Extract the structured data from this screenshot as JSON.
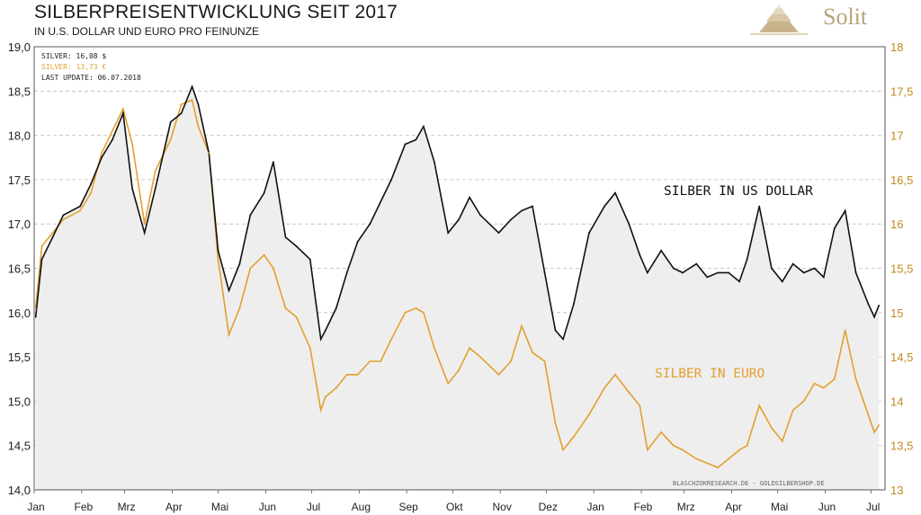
{
  "header": {
    "title": "SILBERPREISENTWICKLUNG SEIT 2017",
    "subtitle": "IN U.S. DOLLAR UND EURO PRO FEINUNZE",
    "brand": "Solit"
  },
  "info_box": {
    "silver_usd": "SILVER: 16,08 $",
    "silver_eur": "SILVER: 13,73 €",
    "last_update": "LAST UPDATE: 06.07.2018"
  },
  "credit": "BLASCHZOKRESEARCH.DE  -  GOLDSILBERSHOP.DE",
  "colors": {
    "usd": "#111111",
    "eur": "#e3a02e",
    "fill": "#eeeeee",
    "grid": "#bbbbbb",
    "right_axis": "#c08a1e"
  },
  "chart_data": {
    "type": "line",
    "title": "SILBERPREISENTWICKLUNG SEIT 2017",
    "subtitle": "IN U.S. DOLLAR UND EURO PRO FEINUNZE",
    "x_ticks": [
      "Jan",
      "Feb",
      "Mrz",
      "Apr",
      "Mai",
      "Jun",
      "Jul",
      "Aug",
      "Sep",
      "Okt",
      "Nov",
      "Dez",
      "Jan",
      "Feb",
      "Mrz",
      "Apr",
      "Mai",
      "Jun",
      "Jul"
    ],
    "y_left": {
      "ticks": [
        "19,0",
        "18,5",
        "18,0",
        "17,5",
        "17,0",
        "16,5",
        "16,0",
        "15,5",
        "15,0",
        "14,5",
        "14,0"
      ],
      "range": [
        14.0,
        19.0
      ]
    },
    "y_right": {
      "ticks": [
        "18",
        "17,5",
        "17",
        "16,5",
        "16",
        "15,5",
        "15",
        "14,5",
        "14",
        "13,5",
        "13"
      ],
      "range": [
        13.0,
        18.0
      ]
    },
    "grid": true,
    "annotations": {
      "usd_label": "SILBER  IN  US DOLLAR",
      "eur_label": "SILBER  IN  EURO"
    },
    "series": [
      {
        "name": "SILBER IN US DOLLAR",
        "axis": "left",
        "x": [
          "2017-01-02",
          "2017-01-06",
          "2017-01-13",
          "2017-01-20",
          "2017-01-31",
          "2017-02-07",
          "2017-02-14",
          "2017-02-21",
          "2017-02-28",
          "2017-03-06",
          "2017-03-14",
          "2017-03-21",
          "2017-03-31",
          "2017-04-07",
          "2017-04-14",
          "2017-04-18",
          "2017-04-25",
          "2017-05-01",
          "2017-05-08",
          "2017-05-15",
          "2017-05-22",
          "2017-05-31",
          "2017-06-06",
          "2017-06-14",
          "2017-06-21",
          "2017-06-30",
          "2017-07-07",
          "2017-07-10",
          "2017-07-17",
          "2017-07-24",
          "2017-07-31",
          "2017-08-08",
          "2017-08-15",
          "2017-08-22",
          "2017-08-31",
          "2017-09-07",
          "2017-09-12",
          "2017-09-19",
          "2017-09-28",
          "2017-10-05",
          "2017-10-12",
          "2017-10-19",
          "2017-10-31",
          "2017-11-08",
          "2017-11-15",
          "2017-11-22",
          "2017-11-30",
          "2017-12-07",
          "2017-12-12",
          "2017-12-19",
          "2017-12-29",
          "2018-01-08",
          "2018-01-15",
          "2018-01-24",
          "2018-01-31",
          "2018-02-05",
          "2018-02-14",
          "2018-02-22",
          "2018-02-28",
          "2018-03-09",
          "2018-03-16",
          "2018-03-23",
          "2018-03-30",
          "2018-04-06",
          "2018-04-11",
          "2018-04-19",
          "2018-04-27",
          "2018-05-04",
          "2018-05-11",
          "2018-05-18",
          "2018-05-25",
          "2018-05-31",
          "2018-06-07",
          "2018-06-14",
          "2018-06-21",
          "2018-06-29",
          "2018-07-03",
          "2018-07-06"
        ],
        "values": [
          15.95,
          16.6,
          16.85,
          17.1,
          17.2,
          17.45,
          17.75,
          17.95,
          18.25,
          17.4,
          16.9,
          17.4,
          18.15,
          18.25,
          18.55,
          18.35,
          17.8,
          16.7,
          16.25,
          16.55,
          17.1,
          17.35,
          17.7,
          16.85,
          16.75,
          16.6,
          15.7,
          15.8,
          16.05,
          16.45,
          16.8,
          17.0,
          17.25,
          17.5,
          17.9,
          17.95,
          18.1,
          17.7,
          16.9,
          17.05,
          17.3,
          17.1,
          16.9,
          17.05,
          17.15,
          17.2,
          16.45,
          15.8,
          15.7,
          16.1,
          16.9,
          17.2,
          17.35,
          17.0,
          16.65,
          16.45,
          16.7,
          16.5,
          16.45,
          16.55,
          16.4,
          16.45,
          16.45,
          16.35,
          16.6,
          17.2,
          16.5,
          16.35,
          16.55,
          16.45,
          16.5,
          16.4,
          16.95,
          17.15,
          16.45,
          16.1,
          15.95,
          16.08
        ]
      },
      {
        "name": "SILBER IN EURO",
        "axis": "right",
        "x": [
          "2017-01-02",
          "2017-01-06",
          "2017-01-13",
          "2017-01-20",
          "2017-01-31",
          "2017-02-07",
          "2017-02-14",
          "2017-02-21",
          "2017-02-28",
          "2017-03-06",
          "2017-03-14",
          "2017-03-21",
          "2017-03-31",
          "2017-04-07",
          "2017-04-14",
          "2017-04-18",
          "2017-04-25",
          "2017-05-01",
          "2017-05-08",
          "2017-05-15",
          "2017-05-22",
          "2017-05-31",
          "2017-06-06",
          "2017-06-14",
          "2017-06-21",
          "2017-06-30",
          "2017-07-07",
          "2017-07-10",
          "2017-07-17",
          "2017-07-24",
          "2017-07-31",
          "2017-08-08",
          "2017-08-15",
          "2017-08-22",
          "2017-08-31",
          "2017-09-07",
          "2017-09-12",
          "2017-09-19",
          "2017-09-28",
          "2017-10-05",
          "2017-10-12",
          "2017-10-19",
          "2017-10-31",
          "2017-11-08",
          "2017-11-15",
          "2017-11-22",
          "2017-11-30",
          "2017-12-07",
          "2017-12-12",
          "2017-12-19",
          "2017-12-29",
          "2018-01-08",
          "2018-01-15",
          "2018-01-24",
          "2018-01-31",
          "2018-02-05",
          "2018-02-14",
          "2018-02-22",
          "2018-02-28",
          "2018-03-09",
          "2018-03-16",
          "2018-03-23",
          "2018-03-30",
          "2018-04-06",
          "2018-04-11",
          "2018-04-19",
          "2018-04-27",
          "2018-05-04",
          "2018-05-11",
          "2018-05-18",
          "2018-05-25",
          "2018-05-31",
          "2018-06-07",
          "2018-06-14",
          "2018-06-21",
          "2018-06-29",
          "2018-07-03",
          "2018-07-06"
        ],
        "values": [
          15.05,
          15.75,
          15.9,
          16.05,
          16.15,
          16.35,
          16.8,
          17.05,
          17.3,
          16.9,
          16.0,
          16.6,
          16.95,
          17.35,
          17.4,
          17.1,
          16.8,
          15.6,
          14.75,
          15.05,
          15.5,
          15.65,
          15.5,
          15.05,
          14.95,
          14.6,
          13.9,
          14.05,
          14.15,
          14.3,
          14.3,
          14.45,
          14.45,
          14.7,
          15.0,
          15.05,
          15.0,
          14.6,
          14.2,
          14.35,
          14.6,
          14.5,
          14.3,
          14.45,
          14.85,
          14.55,
          14.45,
          13.75,
          13.45,
          13.6,
          13.85,
          14.15,
          14.3,
          14.1,
          13.95,
          13.45,
          13.65,
          13.5,
          13.45,
          13.35,
          13.3,
          13.25,
          13.35,
          13.45,
          13.5,
          13.95,
          13.7,
          13.55,
          13.9,
          14.0,
          14.2,
          14.15,
          14.25,
          14.8,
          14.25,
          13.85,
          13.65,
          13.73
        ]
      }
    ]
  }
}
